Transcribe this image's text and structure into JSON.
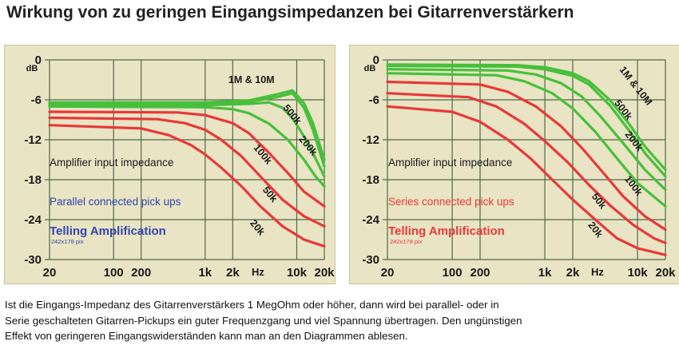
{
  "page": {
    "title": "Wirkung von zu geringen Eingangsimpedanzen bei Gitarrenverstärkern",
    "caption_lines": [
      "Ist die Eingangs-Impedanz des Gitarrenverstärkers 1 MegOhm oder höher, dann wird bei parallel- oder in",
      "Serie geschalteten Gitarren-Pickups ein guter Frequenzgang und viel Spannung übertragen. Den ungünstigen",
      "Effekt von geringeren Eingangswiderständen kann man an den Diagrammen ablesen."
    ]
  },
  "colors": {
    "panel": "#e9e4c3",
    "grid": "#4d6a4a",
    "green": "#46c03c",
    "red": "#e8383a",
    "blue": "#3344b0",
    "text": "#222222"
  },
  "chart_data": [
    {
      "type": "line",
      "title": "",
      "ylabel": "dB",
      "xlabel": "Hz",
      "x_scale": "log",
      "xlim": [
        20,
        20000
      ],
      "ylim": [
        -30,
        0
      ],
      "x_ticks": [
        20,
        100,
        200,
        1000,
        2000,
        10000,
        20000
      ],
      "x_tick_labels": [
        "20",
        "100",
        "200",
        "1k",
        "2k",
        "10k",
        "20k"
      ],
      "y_ticks": [
        0,
        -6,
        -12,
        -18,
        -24,
        -30
      ],
      "y_tick_labels": [
        "0",
        "-6",
        "-12",
        "-18",
        "-24",
        "-30"
      ],
      "annotations": {
        "impedance_label": "Amplifier input impedance",
        "config_label": "Parallel connected pick ups",
        "brand": "Telling Amplification",
        "small_note": "242x178 pix"
      },
      "series": [
        {
          "label": "1M & 10M",
          "color": "green",
          "x": [
            20,
            1000,
            3000,
            6000,
            9000,
            12000,
            15000,
            20000
          ],
          "y": [
            -6.4,
            -6.4,
            -6.1,
            -5.2,
            -4.6,
            -6.5,
            -9.5,
            -15
          ]
        },
        {
          "label": "",
          "color": "green",
          "x": [
            20,
            1000,
            3000,
            6000,
            9000,
            12000,
            15000,
            20000
          ],
          "y": [
            -6.5,
            -6.5,
            -6.3,
            -5.6,
            -5.0,
            -7.2,
            -10.5,
            -16
          ]
        },
        {
          "label": "500k",
          "color": "green",
          "x": [
            20,
            1000,
            3000,
            5000,
            7000,
            9000,
            12000,
            15000,
            20000
          ],
          "y": [
            -6.8,
            -6.8,
            -6.6,
            -6.4,
            -7.2,
            -8.8,
            -11.5,
            -14,
            -17.5
          ]
        },
        {
          "label": "200k",
          "color": "green",
          "x": [
            20,
            1000,
            2000,
            3000,
            5000,
            8000,
            12000,
            16000,
            20000
          ],
          "y": [
            -7.0,
            -7.1,
            -7.4,
            -8.0,
            -9.6,
            -12,
            -15,
            -17.5,
            -19
          ]
        },
        {
          "label": "100k",
          "color": "red",
          "x": [
            20,
            500,
            1000,
            2000,
            3000,
            5000,
            8000,
            12000,
            20000
          ],
          "y": [
            -7.8,
            -7.9,
            -8.3,
            -9.5,
            -11,
            -14,
            -17,
            -19.8,
            -22
          ]
        },
        {
          "label": "50k",
          "color": "red",
          "x": [
            20,
            300,
            600,
            1000,
            1500,
            2500,
            4000,
            7000,
            12000,
            20000
          ],
          "y": [
            -8.7,
            -8.9,
            -9.5,
            -10.5,
            -12,
            -14.5,
            -17.5,
            -21,
            -23.5,
            -25
          ]
        },
        {
          "label": "20k",
          "color": "red",
          "x": [
            20,
            200,
            400,
            700,
            1000,
            1500,
            2500,
            4000,
            7000,
            12000,
            20000
          ],
          "y": [
            -9.8,
            -10.3,
            -11.3,
            -12.8,
            -14.2,
            -16.2,
            -19,
            -22,
            -25,
            -27,
            -28
          ]
        }
      ],
      "curve_labels": [
        {
          "text": "1M & 10M",
          "color": "dark",
          "x": 3200,
          "y": -3.5,
          "angle": 0
        },
        {
          "text": "500k",
          "color": "dark",
          "x": 8400,
          "y": -8.5,
          "angle": 50
        },
        {
          "text": "200k",
          "color": "dark",
          "x": 12500,
          "y": -13.2,
          "angle": 50
        },
        {
          "text": "100k",
          "color": "dark",
          "x": 4000,
          "y": -14.5,
          "angle": 50
        },
        {
          "text": "50k",
          "color": "dark",
          "x": 4800,
          "y": -20.5,
          "angle": 50
        },
        {
          "text": "20k",
          "color": "dark",
          "x": 3500,
          "y": -25.5,
          "angle": 50
        }
      ]
    },
    {
      "type": "line",
      "title": "",
      "ylabel": "dB",
      "xlabel": "Hz",
      "x_scale": "log",
      "xlim": [
        20,
        20000
      ],
      "ylim": [
        -30,
        0
      ],
      "x_ticks": [
        20,
        100,
        200,
        1000,
        2000,
        10000,
        20000
      ],
      "x_tick_labels": [
        "20",
        "100",
        "200",
        "1k",
        "2k",
        "10k",
        "20k"
      ],
      "y_ticks": [
        0,
        -6,
        -12,
        -18,
        -24,
        -30
      ],
      "y_tick_labels": [
        "0",
        "-6",
        "-12",
        "-18",
        "-24",
        "-30"
      ],
      "annotations": {
        "impedance_label": "Amplifier input impedance",
        "config_label": "Series connected pick ups",
        "brand": "Telling Amplification",
        "small_note": "242x178 pix"
      },
      "series": [
        {
          "label": "1M & 10M",
          "color": "green",
          "x": [
            20,
            500,
            1000,
            2000,
            3000,
            5000,
            8000,
            12000,
            20000
          ],
          "y": [
            -0.7,
            -0.8,
            -1.1,
            -2.0,
            -3.2,
            -6,
            -9.5,
            -13,
            -16.5
          ]
        },
        {
          "label": "",
          "color": "green",
          "x": [
            20,
            500,
            1000,
            2000,
            3000,
            5000,
            8000,
            12000,
            20000
          ],
          "y": [
            -0.9,
            -1.0,
            -1.4,
            -2.4,
            -3.7,
            -6.8,
            -10.5,
            -14,
            -17.5
          ]
        },
        {
          "label": "500k",
          "color": "green",
          "x": [
            20,
            400,
            800,
            1500,
            2500,
            4000,
            7000,
            12000,
            20000
          ],
          "y": [
            -1.4,
            -1.6,
            -2.2,
            -3.5,
            -5.5,
            -8.5,
            -12.5,
            -16.5,
            -19.5
          ]
        },
        {
          "label": "200k",
          "color": "green",
          "x": [
            20,
            300,
            600,
            1200,
            2000,
            3500,
            6000,
            10000,
            20000
          ],
          "y": [
            -2.0,
            -2.3,
            -3.2,
            -5.0,
            -7.3,
            -10.8,
            -14.8,
            -18.5,
            -22
          ]
        },
        {
          "label": "100k",
          "color": "red",
          "x": [
            20,
            200,
            400,
            800,
            1500,
            2500,
            4000,
            7000,
            12000,
            20000
          ],
          "y": [
            -3.3,
            -3.7,
            -4.8,
            -7.0,
            -10,
            -13.2,
            -16.5,
            -20.5,
            -23.5,
            -25.5
          ]
        },
        {
          "label": "50k",
          "color": "red",
          "x": [
            20,
            150,
            300,
            600,
            1000,
            1800,
            3000,
            5000,
            9000,
            15000,
            20000
          ],
          "y": [
            -5.0,
            -5.6,
            -7.0,
            -9.6,
            -12.2,
            -15.5,
            -18.8,
            -21.8,
            -24.8,
            -26.8,
            -27.5
          ]
        },
        {
          "label": "20k",
          "color": "red",
          "x": [
            20,
            100,
            200,
            400,
            700,
            1200,
            2000,
            3500,
            6000,
            10000,
            20000
          ],
          "y": [
            -7.0,
            -7.8,
            -9.3,
            -12,
            -14.8,
            -18,
            -21,
            -24,
            -26.8,
            -28.3,
            -29.3
          ]
        }
      ],
      "curve_labels": [
        {
          "text": "1M & 10M",
          "color": "dark",
          "x": 9000,
          "y": -4.2,
          "angle": 52
        },
        {
          "text": "500k",
          "color": "dark",
          "x": 6600,
          "y": -7.8,
          "angle": 52
        },
        {
          "text": "200k",
          "color": "dark",
          "x": 8600,
          "y": -12.5,
          "angle": 52
        },
        {
          "text": "100k",
          "color": "dark",
          "x": 8500,
          "y": -19.2,
          "angle": 52
        },
        {
          "text": "50k",
          "color": "dark",
          "x": 3600,
          "y": -21.5,
          "angle": 52
        },
        {
          "text": "20k",
          "color": "dark",
          "x": 3300,
          "y": -25.8,
          "angle": 52
        }
      ]
    }
  ]
}
